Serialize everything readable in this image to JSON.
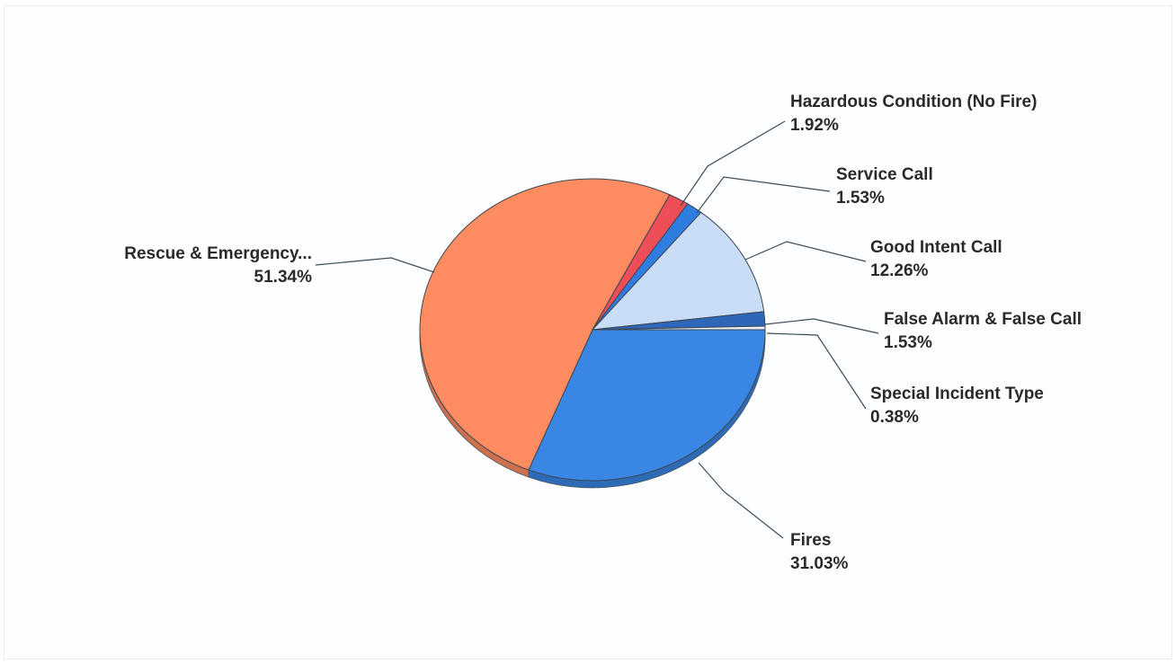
{
  "chart_data": {
    "type": "pie",
    "title": "",
    "style": "3d",
    "slices": [
      {
        "label": "Fires",
        "percent": "31.03%",
        "value": 31.03,
        "color": "#3a86e4"
      },
      {
        "label": "Rescue & Emergency...",
        "percent": "51.34%",
        "value": 51.34,
        "color": "#ff8c60"
      },
      {
        "label": "Hazardous Condition (No Fire)",
        "percent": "1.92%",
        "value": 1.92,
        "color": "#ee4e58"
      },
      {
        "label": "Service Call",
        "percent": "1.53%",
        "value": 1.53,
        "color": "#2f7de0"
      },
      {
        "label": "Good Intent Call",
        "percent": "12.26%",
        "value": 12.26,
        "color": "#c9def6"
      },
      {
        "label": "False Alarm & False Call",
        "percent": "1.53%",
        "value": 1.53,
        "color": "#2f67b8"
      },
      {
        "label": "Special Incident Type",
        "percent": "0.38%",
        "value": 0.38,
        "color": "#e8eff8"
      }
    ]
  }
}
